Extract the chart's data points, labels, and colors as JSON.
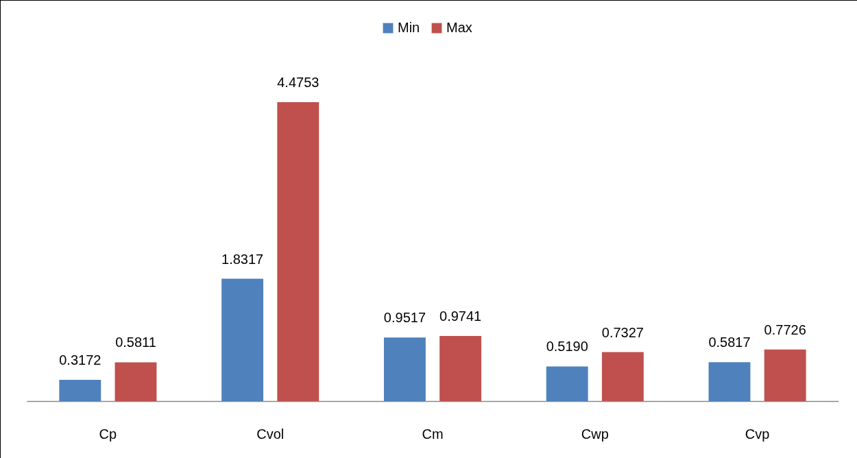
{
  "chart_data": {
    "type": "bar",
    "categories": [
      "Cp",
      "Cvol",
      "Cm",
      "Cwp",
      "Cvp"
    ],
    "series": [
      {
        "name": "Min",
        "color": "#4f81bd",
        "values": [
          0.3172,
          1.8317,
          0.9517,
          0.519,
          0.5817
        ],
        "value_labels": [
          "0.3172",
          "1.8317",
          "0.9517",
          "0.5190",
          "0.5817"
        ]
      },
      {
        "name": "Max",
        "color": "#c0504d",
        "values": [
          0.5811,
          4.4753,
          0.9741,
          0.7327,
          0.7726
        ],
        "value_labels": [
          "0.5811",
          "4.4753",
          "0.9741",
          "0.7327",
          "0.7726"
        ]
      }
    ],
    "legend": "top",
    "tick_labels": "x",
    "grid": false
  }
}
